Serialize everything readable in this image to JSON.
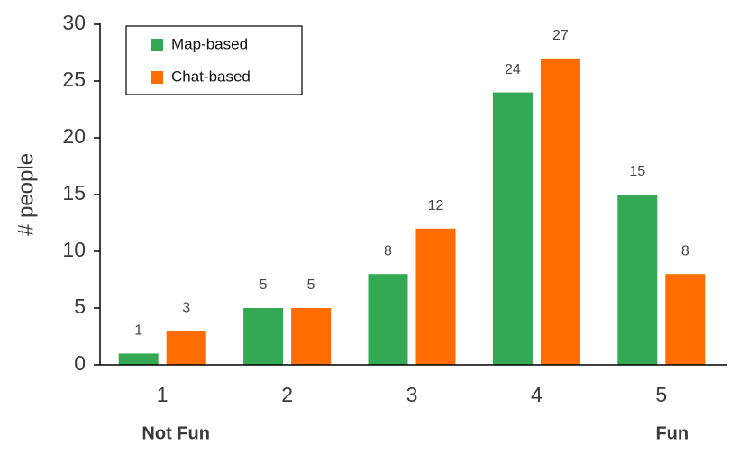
{
  "chart_data": {
    "type": "bar",
    "ylabel": "# people",
    "categories": [
      "1",
      "2",
      "3",
      "4",
      "5"
    ],
    "annotations": [
      "Not Fun",
      "Fun"
    ],
    "series": [
      {
        "name": "Map-based",
        "color": "#34a853",
        "values": [
          1,
          5,
          8,
          24,
          15
        ]
      },
      {
        "name": "Chat-based",
        "color": "#ff6d00",
        "values": [
          3,
          5,
          12,
          27,
          8
        ]
      }
    ],
    "ylim": [
      0,
      30
    ],
    "yticks": [
      0,
      5,
      10,
      15,
      20,
      25,
      30
    ],
    "legend": "upper left"
  }
}
